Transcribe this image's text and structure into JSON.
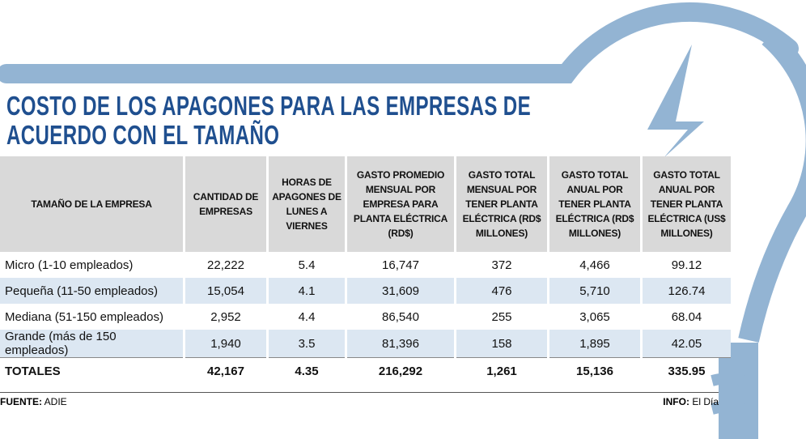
{
  "title": [
    "COSTO DE LOS APAGONES PARA LAS EMPRESAS DE",
    "ACUERDO CON EL TAMAÑO"
  ],
  "table": {
    "header": [
      "TAMAÑO DE LA EMPRESA",
      "CANTIDAD DE EMPRESAS",
      "HORAS DE APAGONES DE LUNES A VIERNES",
      "GASTO PROMEDIO MENSUAL POR EMPRESA PARA PLANTA ELÉCTRICA (RD$)",
      "GASTO TOTAL MENSUAL POR TENER PLANTA ELÉCTRICA (RD$ MILLONES)",
      "GASTO TOTAL ANUAL POR TENER PLANTA ELÉCTRICA (RD$ MILLONES)",
      "GASTO TOTAL ANUAL POR TENER PLANTA ELÉCTRICA (US$ MILLONES)"
    ],
    "rows": [
      [
        "Micro (1-10 empleados)",
        "22,222",
        "5.4",
        "16,747",
        "372",
        "4,466",
        "99.12"
      ],
      [
        "Pequeña (11-50 empleados)",
        "15,054",
        "4.1",
        "31,609",
        "476",
        "5,710",
        "126.74"
      ],
      [
        "Mediana (51-150 empleados)",
        "2,952",
        "4.4",
        "86,540",
        "255",
        "3,065",
        "68.04"
      ],
      [
        "Grande (más de 150 empleados)",
        "1,940",
        "3.5",
        "81,396",
        "158",
        "1,895",
        "42.05"
      ],
      [
        "TOTALES",
        "42,167",
        "4.35",
        "216,292",
        "1,261",
        "15,136",
        "335.95"
      ]
    ]
  },
  "footer": {
    "source_label": "FUENTE:",
    "source": "ADIE",
    "info_label": "INFO:",
    "info": "El Día"
  }
}
